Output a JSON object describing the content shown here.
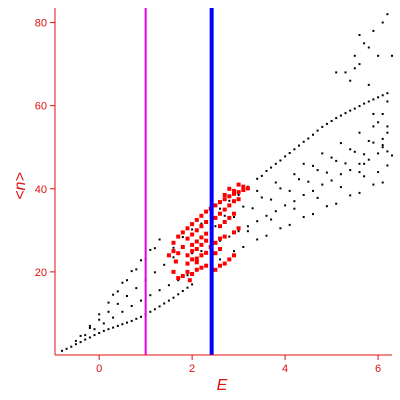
{
  "chart_data": {
    "type": "scatter",
    "title": "",
    "xlabel": "E",
    "ylabel": "<n>",
    "xlim": [
      -0.95,
      6.3
    ],
    "ylim": [
      0,
      83.5
    ],
    "xticks": [
      0,
      2,
      4,
      6
    ],
    "yticks": [
      20,
      40,
      60,
      80
    ],
    "grid": false,
    "legend": "none",
    "colors": {
      "axis": "#e01010",
      "black_points": "#000000",
      "red_points": "#ff0000",
      "line_magenta": "#e100e1",
      "line_blue": "#0000ff"
    },
    "vlines": [
      {
        "x": 1.0,
        "color": "#e100e1"
      },
      {
        "x": 2.42,
        "color": "#0000ff"
      }
    ],
    "series": [
      {
        "color": "#000000",
        "points": [
          [
            -0.8,
            1
          ],
          [
            -0.7,
            1.5
          ],
          [
            -0.6,
            2
          ],
          [
            -0.5,
            2.6
          ],
          [
            -0.4,
            3.1
          ],
          [
            -0.3,
            3.7
          ],
          [
            -0.2,
            4.2
          ],
          [
            -0.1,
            4.8
          ],
          [
            0,
            5.3
          ],
          [
            0.1,
            5.8
          ],
          [
            0.2,
            6.2
          ],
          [
            0.3,
            6.6
          ],
          [
            0.4,
            7
          ],
          [
            0.5,
            7.4
          ],
          [
            0.6,
            7.8
          ],
          [
            0.7,
            8.2
          ],
          [
            0.8,
            8.7
          ],
          [
            0.9,
            9.2
          ],
          [
            1,
            9.8
          ],
          [
            1.1,
            10.4
          ],
          [
            1.2,
            11
          ],
          [
            1.3,
            11.7
          ],
          [
            1.4,
            12.4
          ],
          [
            1.5,
            13.1
          ],
          [
            1.6,
            13.8
          ],
          [
            1.7,
            14.6
          ],
          [
            1.8,
            15.4
          ],
          [
            1.9,
            16.2
          ],
          [
            2,
            17
          ],
          [
            -0.5,
            3.4
          ],
          [
            -0.3,
            4.8
          ],
          [
            -0.1,
            6.2
          ],
          [
            0.1,
            7.6
          ],
          [
            0.3,
            9
          ],
          [
            0.5,
            10.4
          ],
          [
            0.7,
            11.8
          ],
          [
            0.9,
            13.1
          ],
          [
            1.1,
            14.4
          ],
          [
            1.3,
            15.6
          ],
          [
            1.5,
            16.8
          ],
          [
            1.7,
            18
          ],
          [
            1.9,
            19.2
          ],
          [
            2.1,
            20.4
          ],
          [
            -0.4,
            4.6
          ],
          [
            -0.2,
            6.5
          ],
          [
            0,
            8.5
          ],
          [
            0.2,
            10.4
          ],
          [
            0.4,
            12.3
          ],
          [
            0.6,
            14.2
          ],
          [
            0.8,
            16.1
          ],
          [
            1,
            18
          ],
          [
            1.2,
            19.9
          ],
          [
            1.4,
            21.7
          ],
          [
            1.6,
            23.5
          ],
          [
            -0.2,
            7
          ],
          [
            0,
            9.8
          ],
          [
            0.2,
            12.6
          ],
          [
            0.4,
            15.3
          ],
          [
            0.6,
            18
          ],
          [
            0.8,
            20.6
          ],
          [
            1,
            23.2
          ],
          [
            1.2,
            25.7
          ],
          [
            0.3,
            14.5
          ],
          [
            0.5,
            17.4
          ],
          [
            0.7,
            20.2
          ],
          [
            0.9,
            22.8
          ],
          [
            1.1,
            25.3
          ],
          [
            1.3,
            27.8
          ],
          [
            1.6,
            25.8
          ],
          [
            1.8,
            28.4
          ],
          [
            2,
            30.2
          ],
          [
            2.2,
            31.6
          ],
          [
            2.4,
            33.5
          ],
          [
            2.6,
            35.2
          ],
          [
            2.8,
            37.1
          ],
          [
            3,
            38.5
          ],
          [
            3.2,
            40.5
          ],
          [
            3.4,
            42.4
          ],
          [
            3.6,
            44.3
          ],
          [
            3.8,
            46
          ],
          [
            4,
            47.8
          ],
          [
            4.2,
            49.5
          ],
          [
            4.4,
            51.3
          ],
          [
            4.6,
            53
          ],
          [
            4.8,
            54.9
          ],
          [
            5,
            56.3
          ],
          [
            5.2,
            57.6
          ],
          [
            5.4,
            58.8
          ],
          [
            5.6,
            59.9
          ],
          [
            5.8,
            61
          ],
          [
            6,
            62
          ],
          [
            6.2,
            63
          ],
          [
            3.5,
            43.1
          ],
          [
            3.7,
            45.1
          ],
          [
            3.9,
            46.8
          ],
          [
            4.1,
            48.6
          ],
          [
            4.3,
            50.4
          ],
          [
            4.5,
            52.1
          ],
          [
            4.7,
            54
          ],
          [
            4.9,
            55.6
          ],
          [
            5.1,
            57
          ],
          [
            5.3,
            58.2
          ],
          [
            5.5,
            59.3
          ],
          [
            5.7,
            60.5
          ],
          [
            5.9,
            61.5
          ],
          [
            6.1,
            62.5
          ],
          [
            2,
            24.5
          ],
          [
            2.4,
            26
          ],
          [
            2.8,
            28.5
          ],
          [
            3.2,
            31
          ],
          [
            3.6,
            33.5
          ],
          [
            4,
            36
          ],
          [
            4.4,
            38.5
          ],
          [
            4.8,
            41
          ],
          [
            5.2,
            43.5
          ],
          [
            5.6,
            46
          ],
          [
            6,
            48.5
          ],
          [
            2.2,
            25
          ],
          [
            2.6,
            27.5
          ],
          [
            3,
            29.8
          ],
          [
            3.4,
            32.2
          ],
          [
            3.8,
            34.6
          ],
          [
            4.2,
            37
          ],
          [
            4.6,
            39.5
          ],
          [
            5,
            42
          ],
          [
            5.4,
            44.5
          ],
          [
            5.8,
            47
          ],
          [
            6.2,
            49
          ],
          [
            2.5,
            31
          ],
          [
            2.9,
            33.2
          ],
          [
            3.3,
            35.3
          ],
          [
            3.7,
            37.4
          ],
          [
            4.1,
            39.5
          ],
          [
            4.5,
            41.7
          ],
          [
            4.9,
            43.9
          ],
          [
            5.3,
            46.1
          ],
          [
            5.7,
            48.3
          ],
          [
            6.1,
            50.5
          ],
          [
            2.7,
            33.5
          ],
          [
            3.1,
            35.7
          ],
          [
            3.5,
            37.9
          ],
          [
            3.9,
            40.1
          ],
          [
            4.3,
            42.3
          ],
          [
            4.7,
            44.5
          ],
          [
            5.1,
            46.7
          ],
          [
            5.5,
            48.9
          ],
          [
            5.9,
            51.1
          ],
          [
            3.4,
            39.5
          ],
          [
            3.8,
            41.5
          ],
          [
            4.2,
            43.5
          ],
          [
            4.6,
            45.5
          ],
          [
            5,
            47.5
          ],
          [
            5.4,
            49.5
          ],
          [
            5.8,
            51.5
          ],
          [
            6.2,
            53.5
          ],
          [
            4.4,
            46
          ],
          [
            4.8,
            48.5
          ],
          [
            5.2,
            51
          ],
          [
            5.6,
            53.5
          ],
          [
            6,
            56
          ],
          [
            2.6,
            23
          ],
          [
            3.1,
            26
          ],
          [
            3.6,
            28.7
          ],
          [
            4.1,
            31.3
          ],
          [
            4.6,
            33.9
          ],
          [
            5.1,
            36.4
          ],
          [
            5.6,
            39
          ],
          [
            6.1,
            41.5
          ],
          [
            2.9,
            25
          ],
          [
            3.4,
            27.8
          ],
          [
            3.9,
            30.5
          ],
          [
            4.4,
            33.2
          ],
          [
            4.9,
            35.8
          ],
          [
            5.4,
            38.4
          ],
          [
            5.9,
            41
          ],
          [
            3.2,
            29.8
          ],
          [
            3.7,
            32.6
          ],
          [
            4.2,
            35.2
          ],
          [
            4.7,
            37.8
          ],
          [
            5.2,
            40.4
          ],
          [
            5.7,
            43
          ],
          [
            6.2,
            45.6
          ],
          [
            5.3,
            68
          ],
          [
            5.5,
            72
          ],
          [
            5.7,
            75
          ],
          [
            5.9,
            78
          ],
          [
            6.1,
            80
          ],
          [
            6.2,
            82
          ],
          [
            5.8,
            74
          ],
          [
            6,
            72
          ],
          [
            5.6,
            70
          ],
          [
            5.4,
            66
          ],
          [
            5.8,
            65
          ],
          [
            6.2,
            61
          ],
          [
            6.1,
            58
          ],
          [
            5.9,
            55
          ],
          [
            6.1,
            52
          ],
          [
            5.9,
            58
          ],
          [
            6.2,
            55
          ],
          [
            6.1,
            50
          ],
          [
            5.7,
            46
          ],
          [
            5.6,
            44
          ],
          [
            6,
            44
          ],
          [
            6.3,
            48
          ],
          [
            5.1,
            68
          ],
          [
            5.5,
            69
          ],
          [
            6.3,
            72
          ],
          [
            5.6,
            77
          ]
        ]
      },
      {
        "color": "#ff0000",
        "points": [
          [
            1.6,
            27
          ],
          [
            1.7,
            28.5
          ],
          [
            1.8,
            29.5
          ],
          [
            1.9,
            30.5
          ],
          [
            2,
            31.5
          ],
          [
            2.1,
            32.5
          ],
          [
            2.2,
            33.5
          ],
          [
            2.3,
            34.5
          ],
          [
            2.4,
            35.2
          ],
          [
            2.5,
            36
          ],
          [
            2.6,
            36.8
          ],
          [
            2.7,
            37.5
          ],
          [
            2.8,
            38.2
          ],
          [
            2.9,
            38.8
          ],
          [
            3,
            39.2
          ],
          [
            3.1,
            39.7
          ],
          [
            3.2,
            40.1
          ],
          [
            1.9,
            28
          ],
          [
            2,
            29
          ],
          [
            2.1,
            30
          ],
          [
            2.2,
            31
          ],
          [
            2.3,
            32
          ],
          [
            2.5,
            33
          ],
          [
            2.6,
            34
          ],
          [
            2.7,
            35
          ],
          [
            2.8,
            36
          ],
          [
            2.9,
            37
          ],
          [
            3,
            37.5
          ],
          [
            2,
            26.5
          ],
          [
            2.1,
            27.3
          ],
          [
            2.2,
            28.3
          ],
          [
            2.3,
            29.2
          ],
          [
            2.6,
            31
          ],
          [
            2.7,
            32
          ],
          [
            2.8,
            33
          ],
          [
            2.9,
            34
          ],
          [
            1.9,
            24
          ],
          [
            2,
            25
          ],
          [
            2.1,
            25.5
          ],
          [
            2.2,
            26.5
          ],
          [
            2.3,
            27.5
          ],
          [
            1.8,
            26
          ],
          [
            1.9,
            22
          ],
          [
            2,
            23
          ],
          [
            2.1,
            23.2
          ],
          [
            2.2,
            24
          ],
          [
            2.3,
            24.6
          ],
          [
            2,
            19.5
          ],
          [
            2.1,
            20.5
          ],
          [
            2.2,
            21
          ],
          [
            2.3,
            21.5
          ],
          [
            2.1,
            22.3
          ],
          [
            1.8,
            19
          ],
          [
            1.9,
            20
          ],
          [
            1.95,
            18
          ],
          [
            1.7,
            18.5
          ],
          [
            1.6,
            20
          ],
          [
            1.5,
            24
          ],
          [
            1.6,
            25
          ],
          [
            1.7,
            24.5
          ],
          [
            1.65,
            22.5
          ],
          [
            2.5,
            20.5
          ],
          [
            2.6,
            21.5
          ],
          [
            2.7,
            22
          ],
          [
            2.8,
            23
          ],
          [
            2.9,
            24
          ],
          [
            2.5,
            27
          ],
          [
            2.6,
            28
          ],
          [
            2.7,
            28.5
          ],
          [
            2.9,
            29.5
          ],
          [
            3,
            30.5
          ],
          [
            2.5,
            24.5
          ],
          [
            2.6,
            25.5
          ],
          [
            2.4,
            26
          ],
          [
            2.7,
            38.5
          ],
          [
            2.9,
            39.5
          ],
          [
            3.1,
            40.5
          ],
          [
            2.8,
            40
          ],
          [
            3,
            41
          ]
        ]
      }
    ]
  }
}
